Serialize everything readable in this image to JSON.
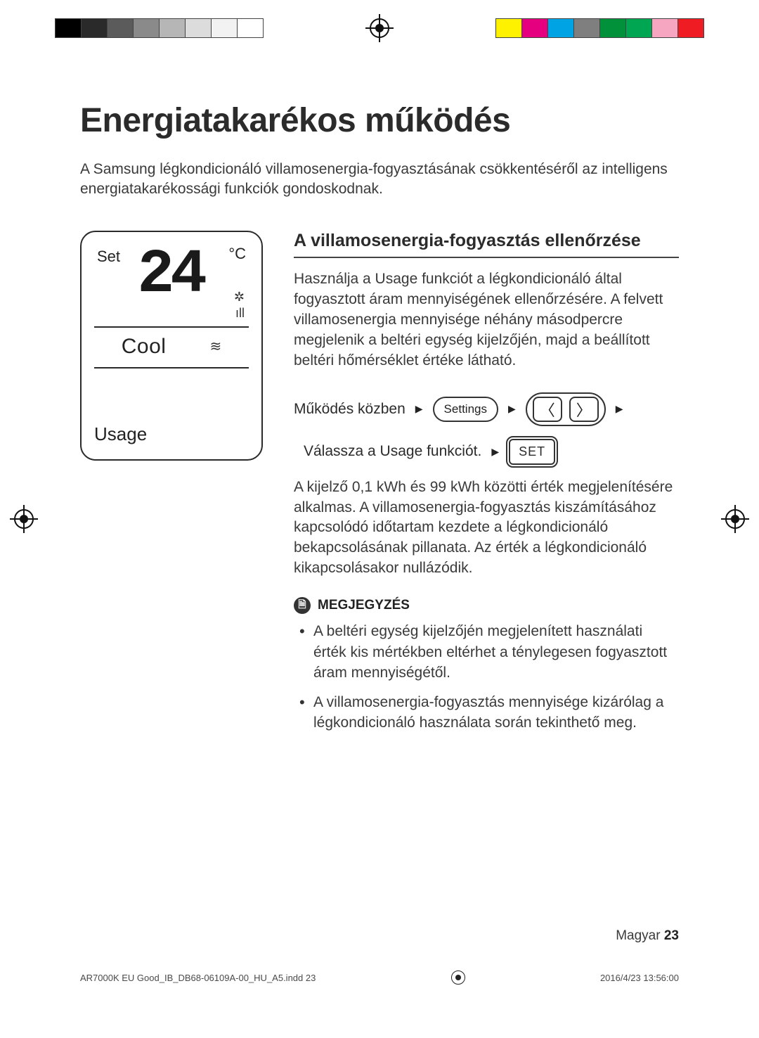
{
  "strip": {
    "left_colors": [
      "#000000",
      "#2a2a2a",
      "#5b5b5b",
      "#8a8a8a",
      "#b6b6b6",
      "#dcdcdc",
      "#f2f2f2",
      "#ffffff"
    ],
    "right_colors": [
      "#fff200",
      "#e4007f",
      "#00a4e4",
      "#7f7f7f",
      "#00913a",
      "#00a651",
      "#f7a6c1",
      "#ef1c24"
    ]
  },
  "title": "Energiatakarékos működés",
  "intro": "A Samsung légkondicionáló villamosenergia-fogyasztásának csökkentéséről az intelligens energiatakarékossági funkciók gondoskodnak.",
  "display": {
    "set_label": "Set",
    "unit": "°C",
    "temp": "24",
    "mode": "Cool",
    "usage": "Usage"
  },
  "section_heading": "A villamosenergia-fogyasztás ellenőrzése",
  "section_p1": "Használja a Usage funkciót a légkondicionáló által fogyasztott áram mennyiségének ellenőrzésére. A felvett villamosenergia mennyisége néhány másodpercre megjelenik a beltéri egység kijelzőjén, majd a beállított beltéri hőmérséklet értéke látható.",
  "steps": {
    "line1_text": "Működés közben",
    "settings_label": "Settings",
    "line2_text": "Válassza a Usage funkciót.",
    "set_label": "SET"
  },
  "section_p2": "A kijelző 0,1 kWh és 99 kWh közötti érték megjelenítésére alkalmas. A villamosenergia-fogyasztás kiszámításához kapcsolódó időtartam kezdete a légkondicionáló bekapcsolásának pillanata. Az érték a légkondicionáló kikapcsolásakor nullázódik.",
  "note_label": "MEGJEGYZÉS",
  "notes": [
    "A beltéri egység kijelzőjén megjelenített használati érték kis mértékben eltérhet a ténylegesen fogyasztott áram mennyiségétől.",
    "A villamosenergia-fogyasztás mennyisége kizárólag a légkondicionáló használata során tekinthető meg."
  ],
  "page_lang": "Magyar",
  "page_number": "23",
  "imprint_left": "AR7000K EU Good_IB_DB68-06109A-00_HU_A5.indd   23",
  "imprint_right": "2016/4/23   13:56:00"
}
